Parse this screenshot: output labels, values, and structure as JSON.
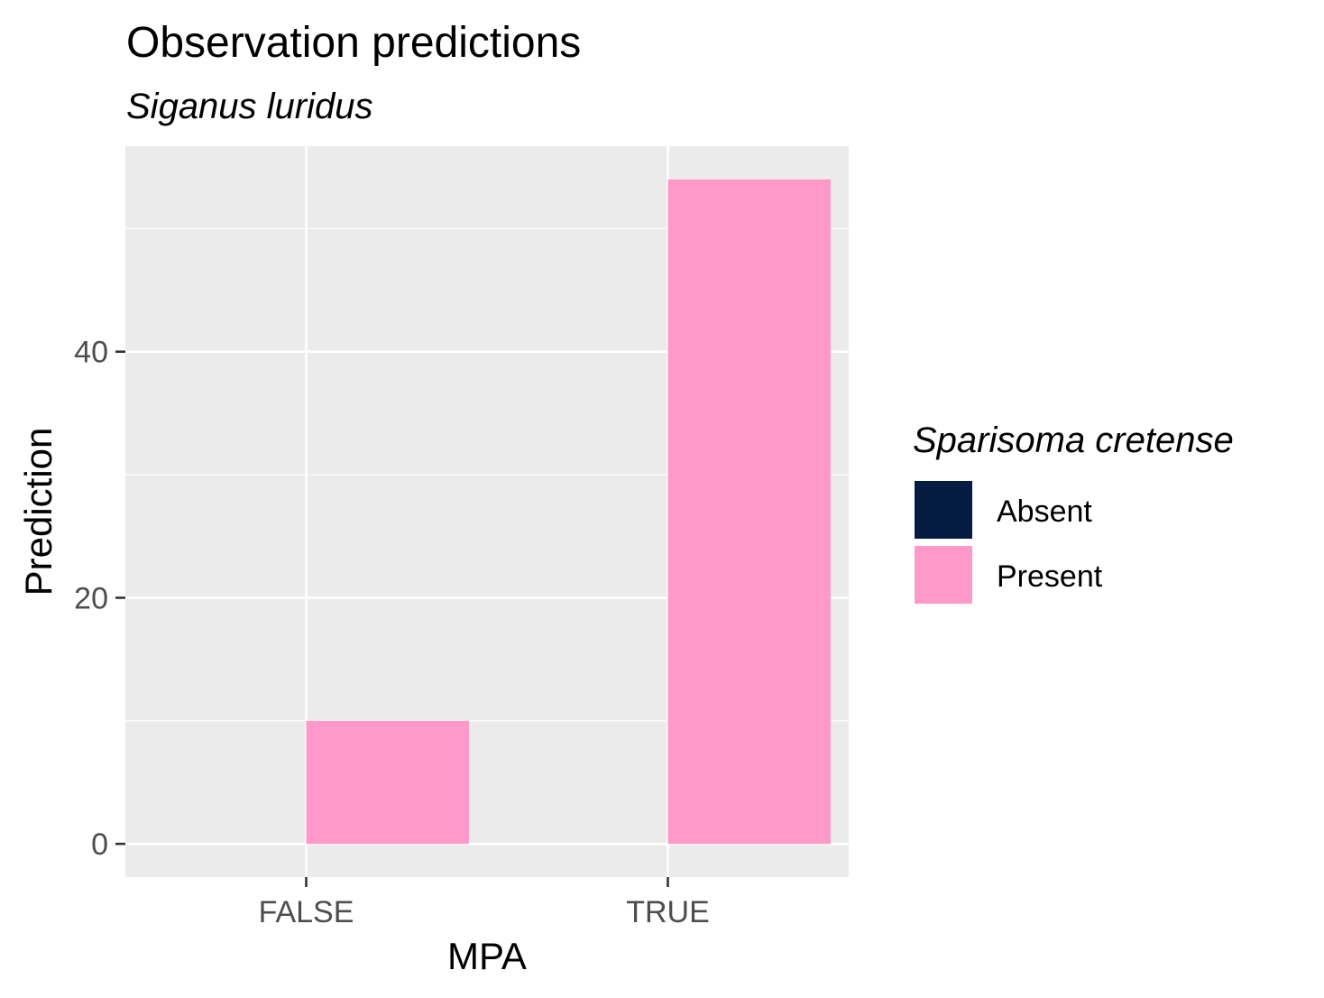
{
  "chart_data": {
    "type": "bar",
    "title": "Observation predictions",
    "subtitle": "Siganus luridus",
    "xlabel": "MPA",
    "ylabel": "Prediction",
    "categories": [
      "FALSE",
      "TRUE"
    ],
    "series": [
      {
        "name": "Absent",
        "color": "#041c42",
        "values": [
          0,
          0
        ]
      },
      {
        "name": "Present",
        "color": "#ff99c9",
        "values": [
          10,
          54
        ]
      }
    ],
    "ylim": [
      -2.7,
      56.7
    ],
    "yticks": [
      0,
      20,
      40
    ],
    "grid": true,
    "legend": {
      "title": "Sparisoma cretense",
      "position": "right",
      "items": [
        {
          "label": "Absent",
          "color": "#041c42"
        },
        {
          "label": "Present",
          "color": "#ff99c9"
        }
      ]
    },
    "panel_color": "#ebebeb",
    "grid_color": "#ffffff"
  }
}
